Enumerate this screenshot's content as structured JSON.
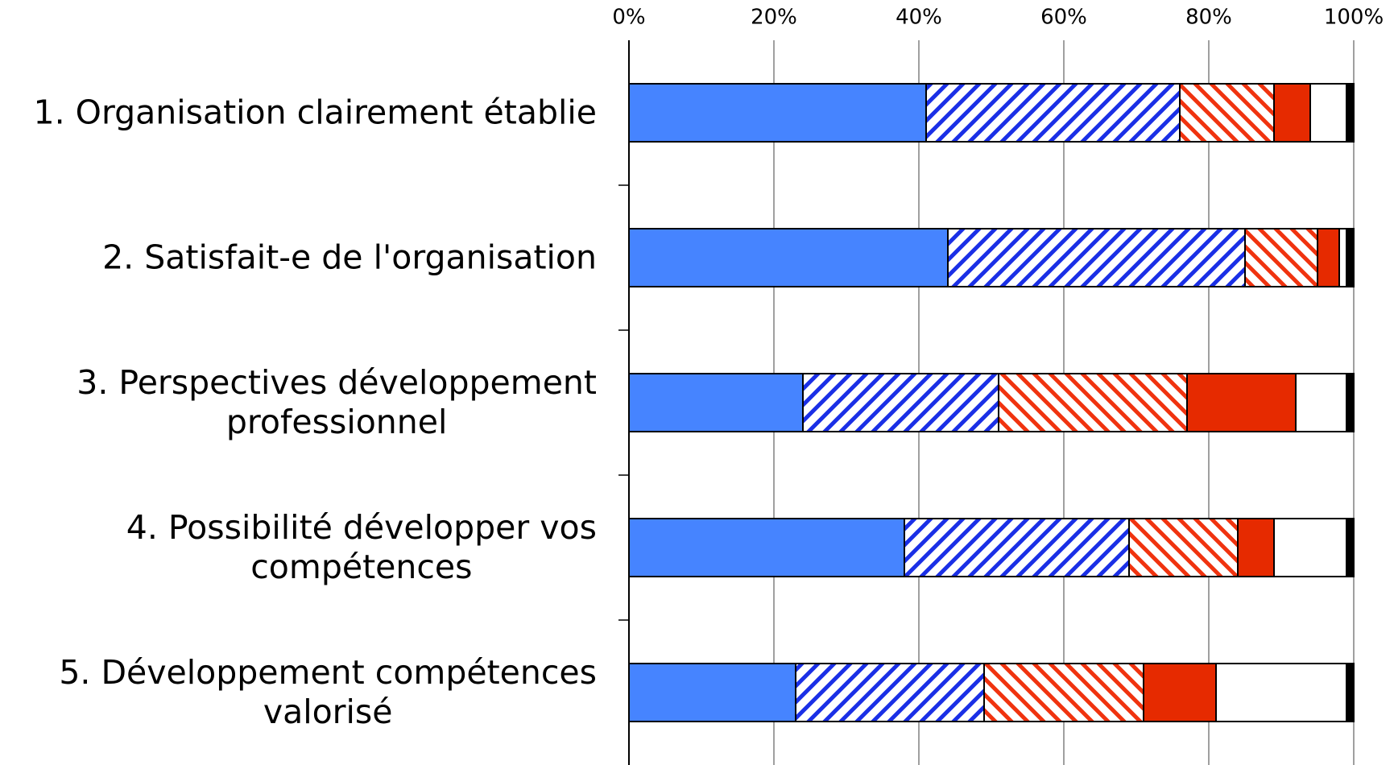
{
  "chart_data": {
    "type": "stacked-barh",
    "categories": [
      "1. Organisation clairement établie",
      "2. Satisfait-e de l'organisation",
      "3. Perspectives développement\nprofessionnel",
      "4. Possibilité développer vos\ncompétences",
      "5. Développement compétences\nvalorisé"
    ],
    "series": [
      {
        "color": "#4684ff",
        "pattern": "solid",
        "values": [
          41,
          44,
          24,
          38,
          23
        ]
      },
      {
        "color": "#1a2fe6",
        "pattern": "forward",
        "values": [
          35,
          41,
          27,
          31,
          26
        ]
      },
      {
        "color": "#f0330f",
        "pattern": "backward",
        "values": [
          13,
          10,
          26,
          15,
          22
        ]
      },
      {
        "color": "#e62a00",
        "pattern": "solid",
        "values": [
          5,
          3,
          15,
          5,
          10
        ]
      },
      {
        "color": "#ffffff",
        "pattern": "solid",
        "values": [
          5,
          1,
          7,
          10,
          18
        ]
      },
      {
        "color": "#000000",
        "pattern": "solid",
        "values": [
          1,
          1,
          1,
          1,
          1
        ]
      }
    ],
    "xlim": [
      0,
      100
    ],
    "xticks": [
      {
        "value": 0,
        "label": "0%"
      },
      {
        "value": 20,
        "label": "20%"
      },
      {
        "value": 40,
        "label": "40%"
      },
      {
        "value": 60,
        "label": "60%"
      },
      {
        "value": 80,
        "label": "80%"
      },
      {
        "value": 100,
        "label": "100%"
      }
    ],
    "grid": true
  }
}
